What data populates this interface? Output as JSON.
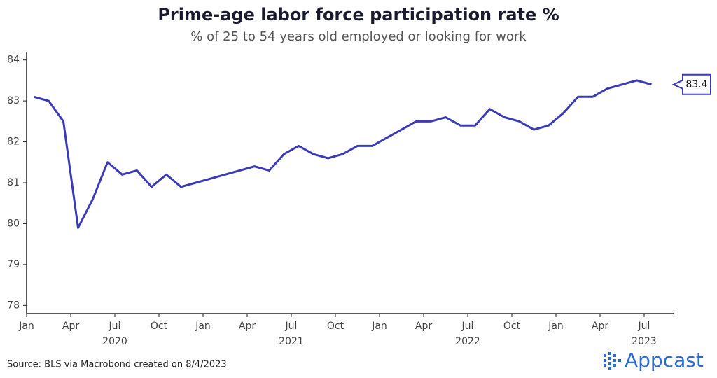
{
  "chart_data": {
    "type": "line",
    "title": "Prime-age labor force participation rate %",
    "subtitle": "% of 25 to 54 years old employed or looking for work",
    "source": "Source: BLS via Macrobond created on 8/4/2023",
    "logo": "Appcast",
    "x": [
      "2020-01",
      "2020-02",
      "2020-03",
      "2020-04",
      "2020-05",
      "2020-06",
      "2020-07",
      "2020-08",
      "2020-09",
      "2020-10",
      "2020-11",
      "2020-12",
      "2021-01",
      "2021-02",
      "2021-03",
      "2021-04",
      "2021-05",
      "2021-06",
      "2021-07",
      "2021-08",
      "2021-09",
      "2021-10",
      "2021-11",
      "2021-12",
      "2022-01",
      "2022-02",
      "2022-03",
      "2022-04",
      "2022-05",
      "2022-06",
      "2022-07",
      "2022-08",
      "2022-09",
      "2022-10",
      "2022-11",
      "2022-12",
      "2023-01",
      "2023-02",
      "2023-03",
      "2023-04",
      "2023-05",
      "2023-06",
      "2023-07"
    ],
    "series": [
      {
        "name": "Prime-age labor force participation rate",
        "color": "#3b3bb5",
        "values": [
          83.1,
          83.0,
          82.5,
          79.9,
          80.6,
          81.5,
          81.2,
          81.3,
          80.9,
          81.2,
          80.9,
          81.0,
          81.1,
          81.2,
          81.3,
          81.4,
          81.3,
          81.7,
          81.9,
          81.7,
          81.6,
          81.7,
          81.9,
          81.9,
          82.1,
          82.3,
          82.5,
          82.5,
          82.6,
          82.4,
          82.4,
          82.8,
          82.6,
          82.5,
          82.3,
          82.4,
          82.7,
          83.1,
          83.1,
          83.3,
          83.4,
          83.5,
          83.4
        ]
      }
    ],
    "xlim": [
      "2020-01",
      "2023-09"
    ],
    "xticks": [
      {
        "value": "2020-01",
        "label": "Jan"
      },
      {
        "value": "2020-04",
        "label": "Apr"
      },
      {
        "value": "2020-07",
        "label": "Jul"
      },
      {
        "value": "2020-10",
        "label": "Oct"
      },
      {
        "value": "2021-01",
        "label": "Jan"
      },
      {
        "value": "2021-04",
        "label": "Apr"
      },
      {
        "value": "2021-07",
        "label": "Jul"
      },
      {
        "value": "2021-10",
        "label": "Oct"
      },
      {
        "value": "2022-01",
        "label": "Jan"
      },
      {
        "value": "2022-04",
        "label": "Apr"
      },
      {
        "value": "2022-07",
        "label": "Jul"
      },
      {
        "value": "2022-10",
        "label": "Oct"
      },
      {
        "value": "2023-01",
        "label": "Jan"
      },
      {
        "value": "2023-04",
        "label": "Apr"
      },
      {
        "value": "2023-07",
        "label": "Jul"
      }
    ],
    "year_labels": [
      {
        "value": "2020-07",
        "label": "2020"
      },
      {
        "value": "2021-07",
        "label": "2021"
      },
      {
        "value": "2022-07",
        "label": "2022"
      },
      {
        "value": "2023-07",
        "label": "2023"
      }
    ],
    "ylim": [
      77.8,
      84.2
    ],
    "yticks": [
      78,
      79,
      80,
      81,
      82,
      83,
      84
    ],
    "grid": false
  }
}
